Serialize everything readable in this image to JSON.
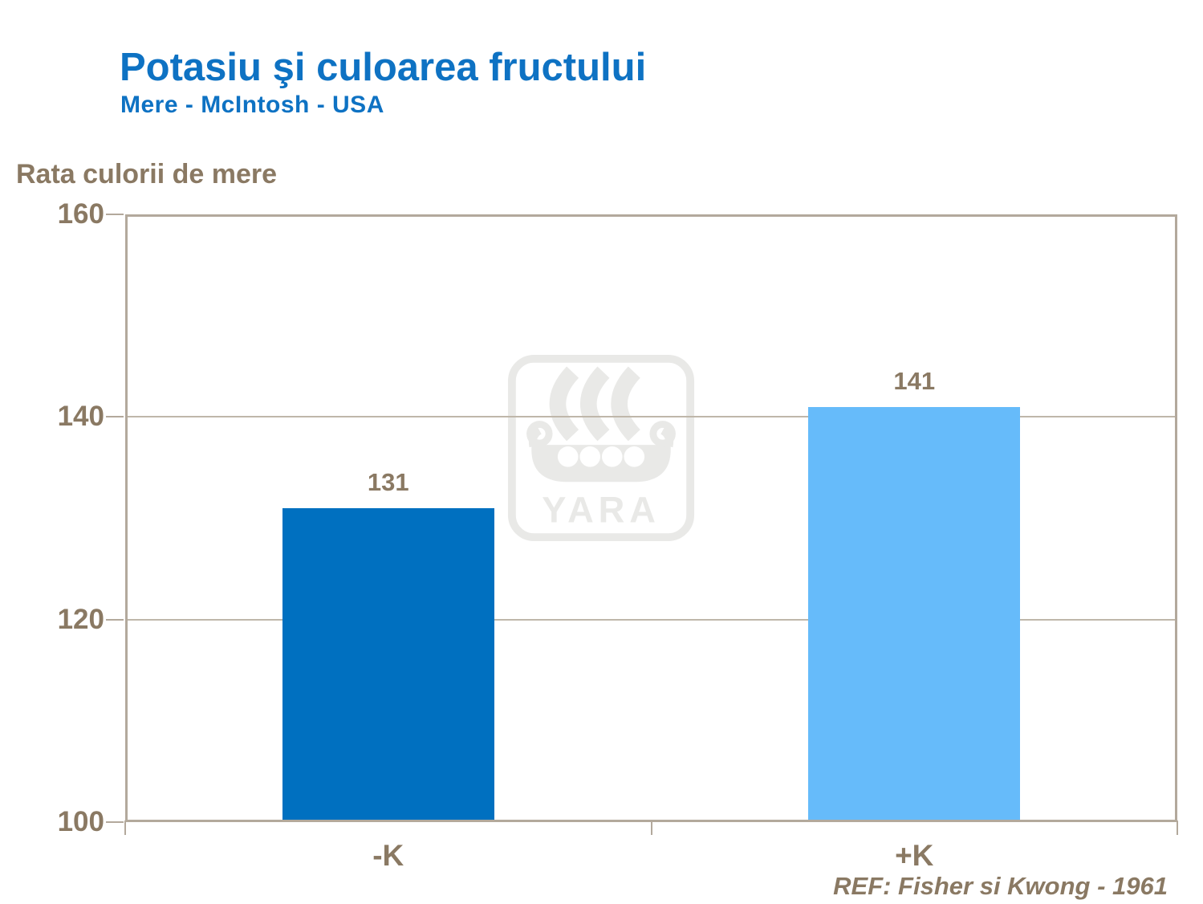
{
  "header": {
    "title": "Potasiu şi culoarea fructului",
    "subtitle": "Mere - McIntosh - USA"
  },
  "footer": {
    "reference": "REF: Fisher si Kwong - 1961"
  },
  "watermark": {
    "label": "YARA",
    "icon": "viking-ship-icon"
  },
  "colors": {
    "title_blue": "#0E72C3",
    "text_brown": "#8A7963",
    "axis_tan": "#B3A99C",
    "gridline_tan": "#BFB7AA",
    "bar_dark_blue": "#0070C0",
    "bar_light_blue": "#66BBFA",
    "watermark_gray": "#E9E9E7"
  },
  "chart_data": {
    "type": "bar",
    "title": "Potasiu şi culoarea fructului",
    "subtitle": "Mere - McIntosh - USA",
    "categories": [
      "-K",
      "+K"
    ],
    "values": [
      131,
      141
    ],
    "data_labels": [
      "131",
      "141"
    ],
    "bar_colors": [
      "#0070C0",
      "#66BBFA"
    ],
    "xlabel": "",
    "ylabel": "Rata culorii de mere",
    "ylim": [
      100,
      160
    ],
    "yticks": [
      100,
      120,
      140,
      160
    ],
    "grid": "horizontal gridlines at y ticks",
    "legend": "none",
    "annotation": "REF: Fisher si Kwong - 1961"
  }
}
